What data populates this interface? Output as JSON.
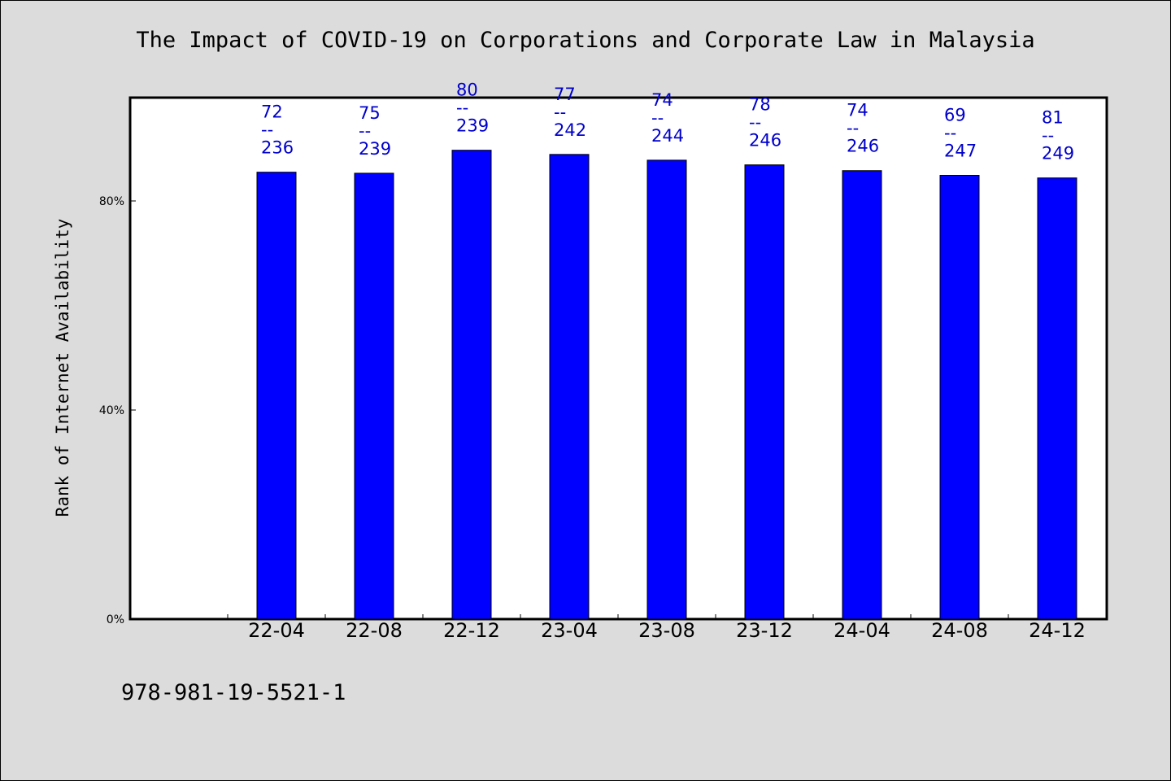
{
  "footer": {
    "isbn": "978-981-19-5521-1"
  },
  "chart_data": {
    "type": "bar",
    "title": "The Impact of COVID-19 on Corporations and Corporate Law in Malaysia",
    "xlabel": "",
    "ylabel": "Rank of Internet Availability",
    "categories": [
      "22-04",
      "22-08",
      "22-12",
      "23-04",
      "23-08",
      "23-12",
      "24-04",
      "24-08",
      "24-12"
    ],
    "values": [
      0.855,
      0.853,
      0.897,
      0.889,
      0.878,
      0.869,
      0.858,
      0.849,
      0.844
    ],
    "data_labels": [
      {
        "top": "72",
        "sep": "--",
        "bottom": "236"
      },
      {
        "top": "75",
        "sep": "--",
        "bottom": "239"
      },
      {
        "top": "80",
        "sep": "--",
        "bottom": "239"
      },
      {
        "top": "77",
        "sep": "--",
        "bottom": "242"
      },
      {
        "top": "74",
        "sep": "--",
        "bottom": "244"
      },
      {
        "top": "78",
        "sep": "--",
        "bottom": "246"
      },
      {
        "top": "74",
        "sep": "--",
        "bottom": "246"
      },
      {
        "top": "69",
        "sep": "--",
        "bottom": "247"
      },
      {
        "top": "81",
        "sep": "--",
        "bottom": "249"
      }
    ],
    "yticks": [
      0,
      0.4,
      0.8
    ],
    "ytick_labels": [
      "0%",
      "40%",
      "80%"
    ],
    "ylim": [
      0,
      1.0
    ],
    "grid": false,
    "legend": "none",
    "colors": {
      "bar": "#0000ff",
      "bar_edge": "#000000",
      "data_label": "#0000cc",
      "plot_background": "#ffffff",
      "figure_background": "#dcdcdc"
    }
  }
}
